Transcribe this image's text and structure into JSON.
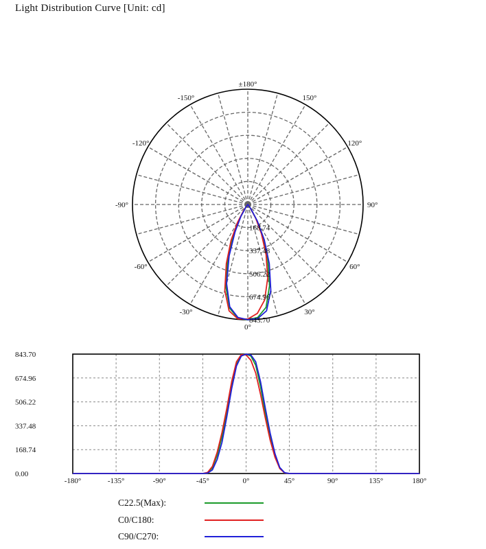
{
  "title": "Light Distribution Curve [Unit: cd]",
  "chart_data": [
    {
      "type": "polar",
      "angle_labels": [
        {
          "deg": 180,
          "text": "±180°"
        },
        {
          "deg": 150,
          "text": "150°"
        },
        {
          "deg": -150,
          "text": "-150°"
        },
        {
          "deg": 120,
          "text": "120°"
        },
        {
          "deg": -120,
          "text": "-120°"
        },
        {
          "deg": 90,
          "text": "90°"
        },
        {
          "deg": -90,
          "text": "-90°"
        },
        {
          "deg": 60,
          "text": "60°"
        },
        {
          "deg": -60,
          "text": "-60°"
        },
        {
          "deg": 30,
          "text": "30°"
        },
        {
          "deg": -30,
          "text": "-30°"
        },
        {
          "deg": 0,
          "text": "0°"
        }
      ],
      "radial_ticks": [
        "168.74",
        "337.48",
        "506.22",
        "674.96",
        "843.70"
      ],
      "r_max": 843.7,
      "grid": true,
      "series": [
        {
          "name": "C22.5(Max)",
          "color": "#1a9a2a",
          "angles": [
            -45,
            -40,
            -35,
            -30,
            -25,
            -20,
            -15,
            -10,
            -5,
            0,
            5,
            10,
            15,
            20,
            25,
            30,
            35,
            40,
            45
          ],
          "values": [
            0,
            5,
            40,
            130,
            260,
            430,
            620,
            770,
            835,
            843,
            830,
            765,
            615,
            425,
            255,
            125,
            38,
            5,
            0
          ]
        },
        {
          "name": "C0/C180",
          "color": "#e02020",
          "angles": [
            -45,
            -40,
            -35,
            -30,
            -25,
            -20,
            -15,
            -10,
            -5,
            0,
            5,
            10,
            15,
            20,
            25,
            30,
            35,
            40,
            45
          ],
          "values": [
            0,
            8,
            50,
            150,
            290,
            460,
            650,
            790,
            840,
            838,
            800,
            710,
            560,
            390,
            235,
            115,
            35,
            4,
            0
          ]
        },
        {
          "name": "C90/C270",
          "color": "#2020d8",
          "angles": [
            -45,
            -40,
            -35,
            -30,
            -25,
            -20,
            -15,
            -10,
            -5,
            0,
            5,
            10,
            15,
            20,
            25,
            30,
            35,
            40,
            45
          ],
          "values": [
            0,
            3,
            25,
            100,
            220,
            400,
            600,
            760,
            830,
            843,
            838,
            790,
            650,
            460,
            285,
            140,
            42,
            6,
            0
          ]
        }
      ]
    },
    {
      "type": "line",
      "x_tick_labels": [
        "-180°",
        "-135°",
        "-90°",
        "-45°",
        "0°",
        "45°",
        "90°",
        "135°",
        "180°"
      ],
      "x_ticks": [
        -180,
        -135,
        -90,
        -45,
        0,
        45,
        90,
        135,
        180
      ],
      "y_tick_labels": [
        "0.00",
        "168.74",
        "337.48",
        "506.22",
        "674.96",
        "843.70"
      ],
      "y_ticks": [
        0,
        168.74,
        337.48,
        506.22,
        674.96,
        843.7
      ],
      "xlim": [
        -180,
        180
      ],
      "ylim": [
        0,
        843.7
      ],
      "grid": true,
      "legend": {
        "placement": "bottom",
        "items": [
          {
            "label": "C22.5(Max):",
            "color": "#1a9a2a"
          },
          {
            "label": "C0/C180:",
            "color": "#e02020"
          },
          {
            "label": "C90/C270:",
            "color": "#2020d8"
          }
        ]
      }
    }
  ]
}
